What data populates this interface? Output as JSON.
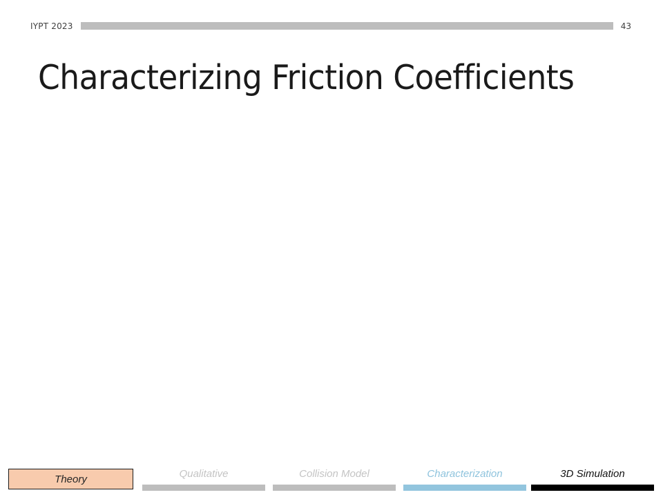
{
  "header": {
    "conference": "IYPT 2023",
    "page_number": "43"
  },
  "slide": {
    "title": "Characterizing Friction Coefficients"
  },
  "footer": {
    "section": "Theory",
    "nav_items": [
      {
        "label": "Qualitative",
        "state": "inactive"
      },
      {
        "label": "Collision Model",
        "state": "inactive"
      },
      {
        "label": "Characterization",
        "state": "current"
      },
      {
        "label": "3D Simulation",
        "state": "upcoming"
      }
    ]
  },
  "colors": {
    "section_box": "#f8cbad",
    "inactive_bar": "#bdbdbd",
    "current_bar": "#92c5de",
    "upcoming_bar": "#000000"
  }
}
